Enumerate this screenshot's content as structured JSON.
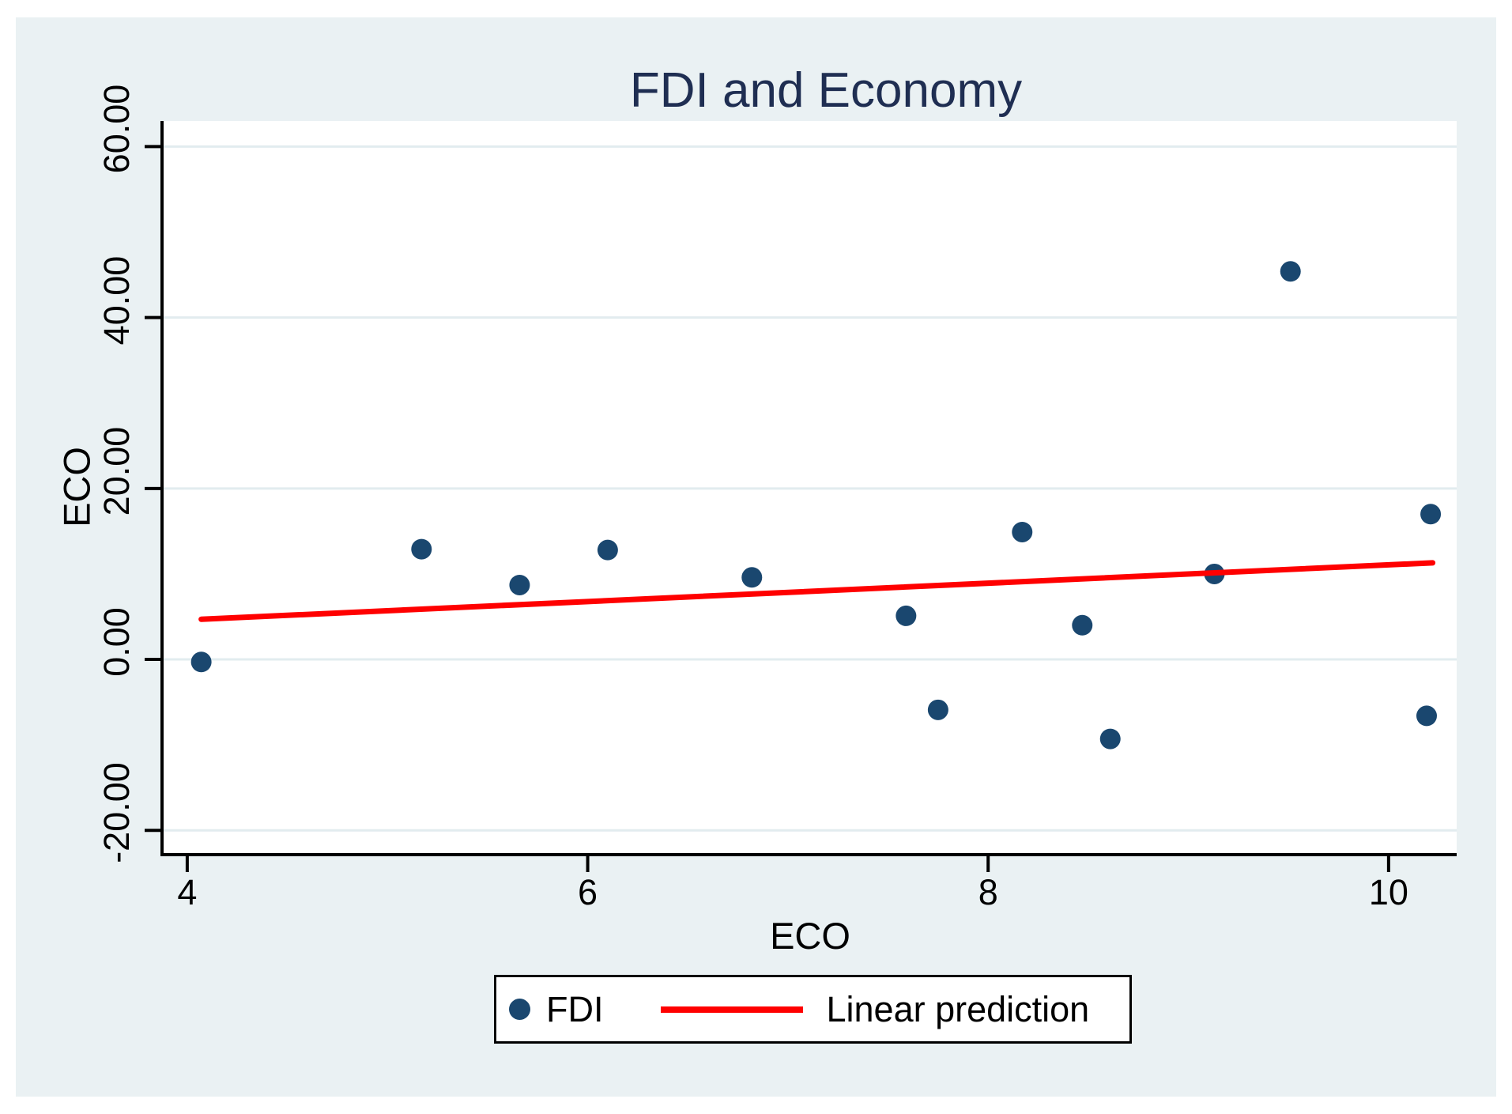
{
  "title": "FDI and Economy",
  "colors": {
    "background": "#EAF1F3",
    "plot_background": "#FFFFFF",
    "gridline": "#E2ECEF",
    "axis": "#000000",
    "marker": "#1A476F",
    "prediction_line": "#FF0000",
    "title_text": "#1F2E52",
    "label_text": "#000000"
  },
  "chart_data": {
    "type": "scatter",
    "title": "FDI and Economy",
    "xlabel": "ECO",
    "ylabel": "ECO",
    "grid": true,
    "legend_position": "bottom-center",
    "xlim": [
      3.882,
      10.34
    ],
    "ylim": [
      -22.66,
      63.0
    ],
    "x_ticks": [
      {
        "value": 4,
        "label": "4"
      },
      {
        "value": 6,
        "label": "6"
      },
      {
        "value": 8,
        "label": "8"
      },
      {
        "value": 10,
        "label": "10"
      }
    ],
    "y_ticks": [
      {
        "value": -20,
        "label": "-20.00"
      },
      {
        "value": 0,
        "label": "0.00"
      },
      {
        "value": 20,
        "label": "20.00"
      },
      {
        "value": 40,
        "label": "40.00"
      },
      {
        "value": 60,
        "label": "60.00"
      }
    ],
    "series": [
      {
        "name": "FDI",
        "type": "scatter",
        "marker": "circle",
        "points": [
          [
            4.07,
            -0.3
          ],
          [
            5.17,
            12.9
          ],
          [
            5.66,
            8.7
          ],
          [
            6.1,
            12.8
          ],
          [
            6.82,
            9.6
          ],
          [
            7.59,
            5.1
          ],
          [
            7.75,
            -5.9
          ],
          [
            8.17,
            14.9
          ],
          [
            8.47,
            4.0
          ],
          [
            8.61,
            -9.3
          ],
          [
            9.13,
            10.0
          ],
          [
            9.51,
            45.4
          ],
          [
            10.19,
            -6.6
          ],
          [
            10.21,
            17.0
          ]
        ]
      },
      {
        "name": "Linear prediction",
        "type": "line",
        "points": [
          [
            4.07,
            4.7
          ],
          [
            10.22,
            11.3
          ]
        ]
      }
    ]
  },
  "legend": {
    "items": [
      {
        "label": "FDI",
        "marker": "circle-dot"
      },
      {
        "label": "Linear prediction",
        "marker": "line"
      }
    ]
  }
}
